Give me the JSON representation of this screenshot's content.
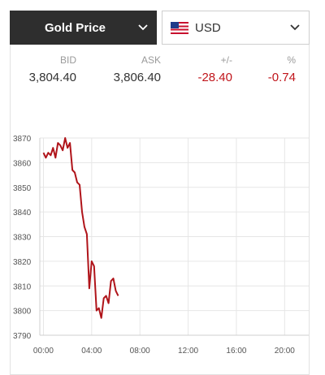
{
  "selector": {
    "metal_label": "Gold Price",
    "currency_label": "USD",
    "currency_flag_icon": "us-flag-icon"
  },
  "quote": {
    "bid_label": "BID",
    "bid_value": "3,804.40",
    "ask_label": "ASK",
    "ask_value": "3,806.40",
    "change_label": "+/-",
    "change_value": "-28.40",
    "percent_label": "%",
    "percent_value": "-0.74"
  },
  "colors": {
    "line": "#b0141a",
    "negative": "#c0151b",
    "header_bg": "#2e2e2e"
  },
  "chart_data": {
    "type": "line",
    "x_unit": "hours",
    "x_ticks": [
      0,
      4,
      8,
      12,
      16,
      20
    ],
    "x_tick_labels": [
      "00:00",
      "04:00",
      "08:00",
      "12:00",
      "16:00",
      "20:00"
    ],
    "xlim": [
      -0.3,
      22
    ],
    "y_ticks": [
      3790,
      3800,
      3810,
      3820,
      3830,
      3840,
      3850,
      3860,
      3870
    ],
    "y_tick_labels": [
      "3790",
      "3800",
      "3810",
      "3820",
      "3830",
      "3840",
      "3850",
      "3860",
      "3870"
    ],
    "ylim": [
      3790,
      3870
    ],
    "grid": true,
    "series": [
      {
        "x": [
          0.0,
          0.2,
          0.4,
          0.6,
          0.8,
          1.0,
          1.2,
          1.4,
          1.6,
          1.8,
          2.0,
          2.2,
          2.4,
          2.6,
          2.8,
          3.0,
          3.2,
          3.4,
          3.6,
          3.8,
          4.0,
          4.2,
          4.4,
          4.6,
          4.8,
          5.0,
          5.2,
          5.4,
          5.6,
          5.8,
          6.0,
          6.2
        ],
        "y": [
          3864,
          3862,
          3864,
          3863,
          3866,
          3862,
          3868,
          3867,
          3865,
          3870,
          3866,
          3868,
          3857,
          3856,
          3852,
          3851,
          3840,
          3834,
          3831,
          3809,
          3820,
          3818,
          3800,
          3801,
          3797,
          3805,
          3806,
          3803,
          3812,
          3813,
          3808,
          3806
        ]
      }
    ]
  }
}
